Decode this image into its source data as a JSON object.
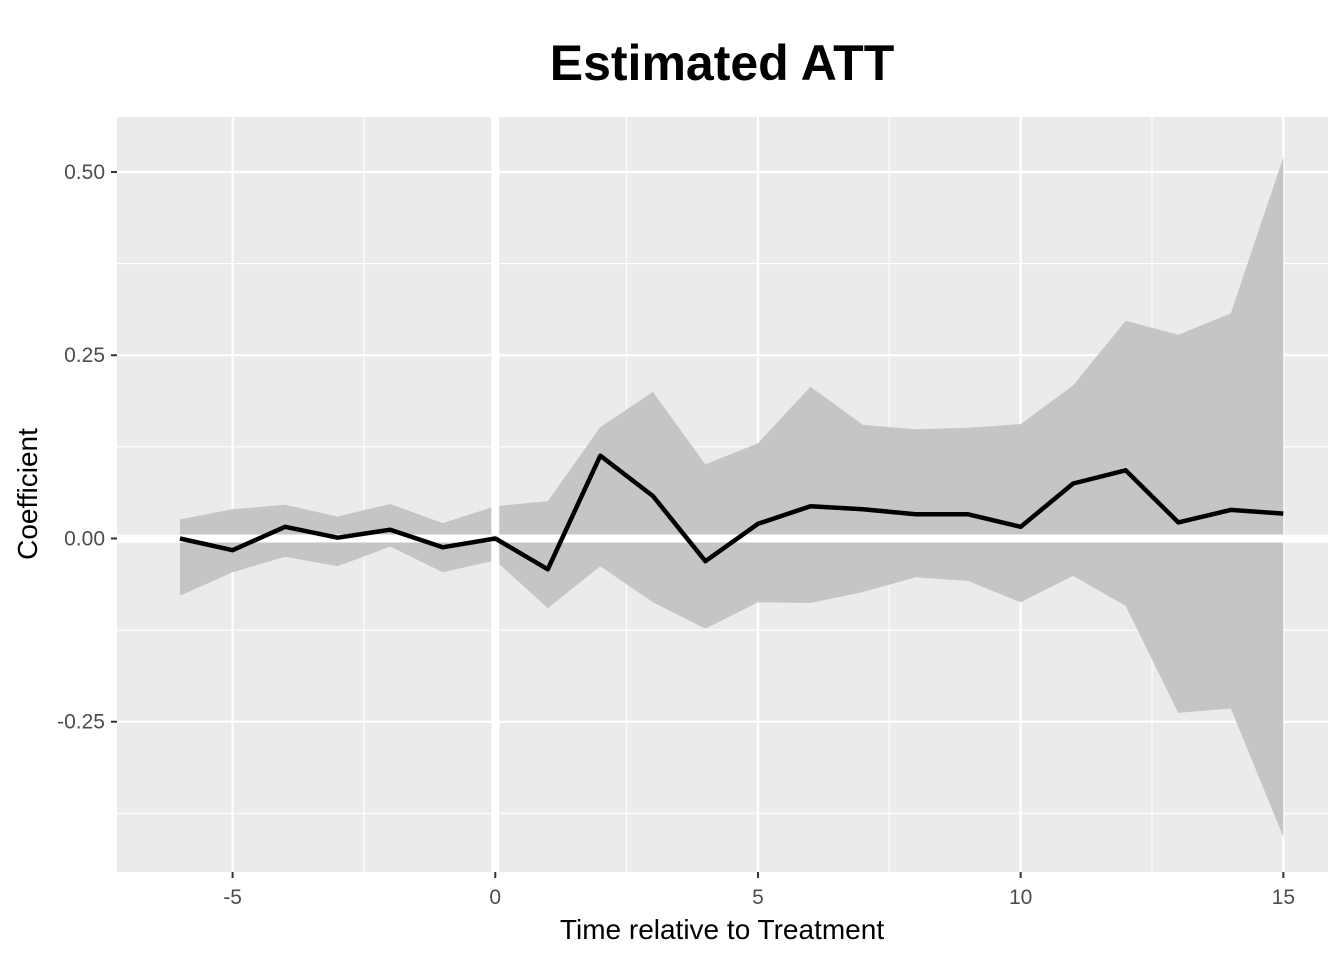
{
  "chart_data": {
    "type": "line",
    "title": "Estimated ATT",
    "xlabel": "Time relative to Treatment",
    "ylabel": "Coefficient",
    "xlim": [
      -7.2,
      15.85
    ],
    "ylim": [
      -0.455,
      0.575
    ],
    "x_ticks": [
      -5,
      0,
      5,
      10,
      15
    ],
    "x_tick_labels": [
      "-5",
      "0",
      "5",
      "10",
      "15"
    ],
    "y_ticks": [
      -0.25,
      0.0,
      0.25,
      0.5
    ],
    "y_tick_labels": [
      "-0.25",
      "0.00",
      "0.25",
      "0.50"
    ],
    "grid": true,
    "reference_lines": {
      "x": 0,
      "y": 0
    },
    "series": [
      {
        "x": [
          -6,
          -5,
          -4,
          -3,
          -2,
          -1,
          0,
          1,
          2,
          3,
          4,
          5,
          6,
          7,
          8,
          9,
          10,
          11,
          12,
          13,
          14,
          15
        ],
        "values": [
          0.0,
          -0.016,
          0.016,
          0.001,
          0.012,
          -0.012,
          0.0,
          -0.042,
          0.113,
          0.058,
          -0.031,
          0.02,
          0.044,
          0.04,
          0.033,
          0.033,
          0.016,
          0.075,
          0.093,
          0.022,
          0.039,
          0.034
        ],
        "ci_lower": [
          -0.078,
          -0.046,
          -0.025,
          -0.038,
          -0.011,
          -0.046,
          -0.03,
          -0.095,
          -0.038,
          -0.087,
          -0.123,
          -0.087,
          -0.088,
          -0.073,
          -0.053,
          -0.058,
          -0.087,
          -0.051,
          -0.092,
          -0.238,
          -0.232,
          -0.407
        ],
        "ci_upper": [
          0.026,
          0.04,
          0.046,
          0.03,
          0.047,
          0.021,
          0.044,
          0.051,
          0.152,
          0.2,
          0.101,
          0.13,
          0.207,
          0.155,
          0.149,
          0.151,
          0.156,
          0.209,
          0.297,
          0.278,
          0.307,
          0.52
        ]
      }
    ],
    "colors": {
      "panel_background": "#ebebeb",
      "grid_line": "#ffffff",
      "ribbon": "#c5c5c5",
      "line": "#000000",
      "tick_label": "#4d4d4d"
    }
  }
}
